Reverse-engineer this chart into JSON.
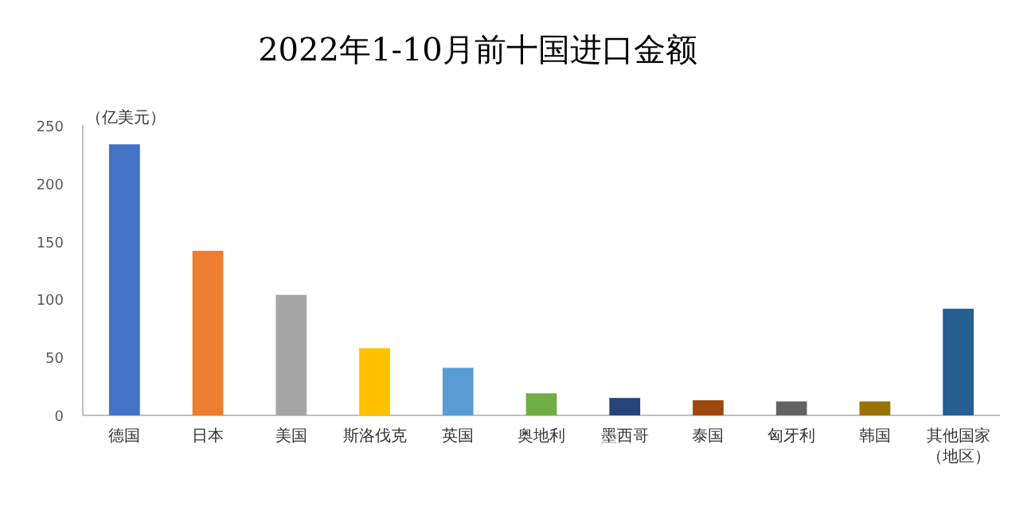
{
  "chart_data": {
    "type": "bar",
    "title": "2022年1-10月前十国进口金额",
    "ylabel": "（亿美元）",
    "categories": [
      "德国",
      "日本",
      "美国",
      "斯洛伐克",
      "英国",
      "奥地利",
      "墨西哥",
      "泰国",
      "匈牙利",
      "韩国",
      "其他国家（地区）"
    ],
    "values": [
      234,
      142,
      104,
      58,
      41,
      19,
      15,
      13,
      12,
      12,
      92
    ],
    "colors": [
      "#4472c4",
      "#ed7d31",
      "#a5a5a5",
      "#ffc000",
      "#5b9bd5",
      "#70ad47",
      "#264478",
      "#9e480e",
      "#636363",
      "#997300",
      "#255e91"
    ],
    "ylim": [
      0,
      250
    ],
    "yticks": [
      0,
      50,
      100,
      150,
      200,
      250
    ],
    "grid": false
  }
}
